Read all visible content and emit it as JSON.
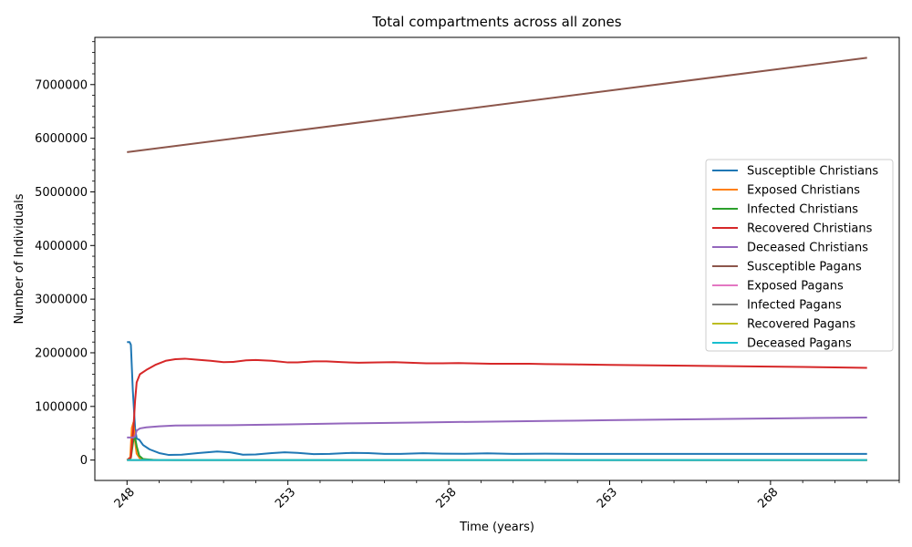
{
  "chart_data": {
    "type": "line",
    "title": "Total compartments across all zones",
    "xlabel": "Time (years)",
    "ylabel": "Number of Individuals",
    "xlim": [
      247.0,
      272.0
    ],
    "ylim": [
      -380000,
      7880000
    ],
    "x_ticks": [
      248,
      253,
      258,
      263,
      268
    ],
    "y_ticks": [
      0,
      1000000,
      2000000,
      3000000,
      4000000,
      5000000,
      6000000,
      7000000
    ],
    "legend_position": "center-right",
    "grid": false,
    "series": [
      {
        "name": "Susceptible Christians",
        "color": "#1f77b4",
        "points": [
          [
            248.0,
            2200000
          ],
          [
            248.08,
            2200000
          ],
          [
            248.12,
            2150000
          ],
          [
            248.18,
            1300000
          ],
          [
            248.25,
            600000
          ],
          [
            248.3,
            400000
          ],
          [
            248.38,
            380000
          ],
          [
            248.5,
            280000
          ],
          [
            248.7,
            200000
          ],
          [
            249.0,
            130000
          ],
          [
            249.3,
            95000
          ],
          [
            249.7,
            100000
          ],
          [
            250.2,
            130000
          ],
          [
            250.8,
            160000
          ],
          [
            251.2,
            145000
          ],
          [
            251.6,
            100000
          ],
          [
            252.0,
            105000
          ],
          [
            252.5,
            130000
          ],
          [
            252.9,
            145000
          ],
          [
            253.3,
            135000
          ],
          [
            253.8,
            110000
          ],
          [
            254.3,
            115000
          ],
          [
            255.0,
            135000
          ],
          [
            255.5,
            130000
          ],
          [
            256.0,
            115000
          ],
          [
            256.5,
            115000
          ],
          [
            257.2,
            128000
          ],
          [
            257.8,
            120000
          ],
          [
            258.5,
            118000
          ],
          [
            259.2,
            125000
          ],
          [
            260.0,
            115000
          ],
          [
            261.0,
            120000
          ],
          [
            262.0,
            115000
          ],
          [
            263.0,
            115000
          ],
          [
            265.0,
            115000
          ],
          [
            268.0,
            115000
          ],
          [
            271.0,
            115000
          ]
        ]
      },
      {
        "name": "Exposed Christians",
        "color": "#ff7f0e",
        "points": [
          [
            248.0,
            0
          ],
          [
            248.1,
            50000
          ],
          [
            248.15,
            600000
          ],
          [
            248.2,
            700000
          ],
          [
            248.25,
            350000
          ],
          [
            248.3,
            120000
          ],
          [
            248.4,
            30000
          ],
          [
            248.6,
            8000
          ],
          [
            249.0,
            2000
          ],
          [
            271.0,
            1000
          ]
        ]
      },
      {
        "name": "Infected Christians",
        "color": "#2ca02c",
        "points": [
          [
            248.0,
            0
          ],
          [
            248.12,
            40000
          ],
          [
            248.2,
            380000
          ],
          [
            248.25,
            420000
          ],
          [
            248.3,
            260000
          ],
          [
            248.38,
            80000
          ],
          [
            248.5,
            20000
          ],
          [
            248.8,
            5000
          ],
          [
            249.5,
            1000
          ],
          [
            271.0,
            500
          ]
        ]
      },
      {
        "name": "Recovered Christians",
        "color": "#d62728",
        "points": [
          [
            248.0,
            0
          ],
          [
            248.12,
            50000
          ],
          [
            248.2,
            600000
          ],
          [
            248.25,
            1100000
          ],
          [
            248.3,
            1450000
          ],
          [
            248.4,
            1600000
          ],
          [
            248.6,
            1680000
          ],
          [
            248.9,
            1780000
          ],
          [
            249.2,
            1850000
          ],
          [
            249.5,
            1880000
          ],
          [
            249.8,
            1890000
          ],
          [
            250.2,
            1870000
          ],
          [
            250.6,
            1850000
          ],
          [
            251.0,
            1825000
          ],
          [
            251.3,
            1830000
          ],
          [
            251.7,
            1860000
          ],
          [
            252.0,
            1865000
          ],
          [
            252.5,
            1850000
          ],
          [
            253.0,
            1820000
          ],
          [
            253.3,
            1820000
          ],
          [
            253.8,
            1840000
          ],
          [
            254.2,
            1840000
          ],
          [
            254.7,
            1825000
          ],
          [
            255.2,
            1815000
          ],
          [
            255.8,
            1820000
          ],
          [
            256.3,
            1825000
          ],
          [
            256.8,
            1815000
          ],
          [
            257.3,
            1805000
          ],
          [
            257.8,
            1805000
          ],
          [
            258.3,
            1808000
          ],
          [
            258.8,
            1802000
          ],
          [
            259.3,
            1795000
          ],
          [
            260.0,
            1795000
          ],
          [
            260.5,
            1795000
          ],
          [
            261.0,
            1790000
          ],
          [
            262.0,
            1782000
          ],
          [
            263.0,
            1775000
          ],
          [
            265.0,
            1762000
          ],
          [
            267.0,
            1748000
          ],
          [
            269.0,
            1735000
          ],
          [
            271.0,
            1720000
          ]
        ]
      },
      {
        "name": "Deceased Christians",
        "color": "#9467bd",
        "points": [
          [
            248.0,
            420000
          ],
          [
            248.2,
            420000
          ],
          [
            248.25,
            440000
          ],
          [
            248.3,
            550000
          ],
          [
            248.4,
            590000
          ],
          [
            248.6,
            610000
          ],
          [
            249.0,
            630000
          ],
          [
            249.5,
            645000
          ],
          [
            250.5,
            648000
          ],
          [
            251.5,
            652000
          ],
          [
            253.0,
            665000
          ],
          [
            255.0,
            685000
          ],
          [
            257.0,
            700000
          ],
          [
            259.0,
            715000
          ],
          [
            261.0,
            728000
          ],
          [
            263.0,
            743000
          ],
          [
            265.0,
            757000
          ],
          [
            267.0,
            770000
          ],
          [
            269.0,
            782000
          ],
          [
            271.0,
            793000
          ]
        ]
      },
      {
        "name": "Susceptible Pagans",
        "color": "#8c564b",
        "points": [
          [
            248.0,
            5740000
          ],
          [
            271.0,
            7500000
          ]
        ]
      },
      {
        "name": "Exposed Pagans",
        "color": "#e377c2",
        "points": [
          [
            248.0,
            0
          ],
          [
            271.0,
            0
          ]
        ]
      },
      {
        "name": "Infected Pagans",
        "color": "#7f7f7f",
        "points": [
          [
            248.0,
            0
          ],
          [
            271.0,
            0
          ]
        ]
      },
      {
        "name": "Recovered Pagans",
        "color": "#bcbd22",
        "points": [
          [
            248.0,
            0
          ],
          [
            271.0,
            0
          ]
        ]
      },
      {
        "name": "Deceased Pagans",
        "color": "#17becf",
        "points": [
          [
            248.0,
            0
          ],
          [
            271.0,
            0
          ]
        ]
      }
    ]
  }
}
